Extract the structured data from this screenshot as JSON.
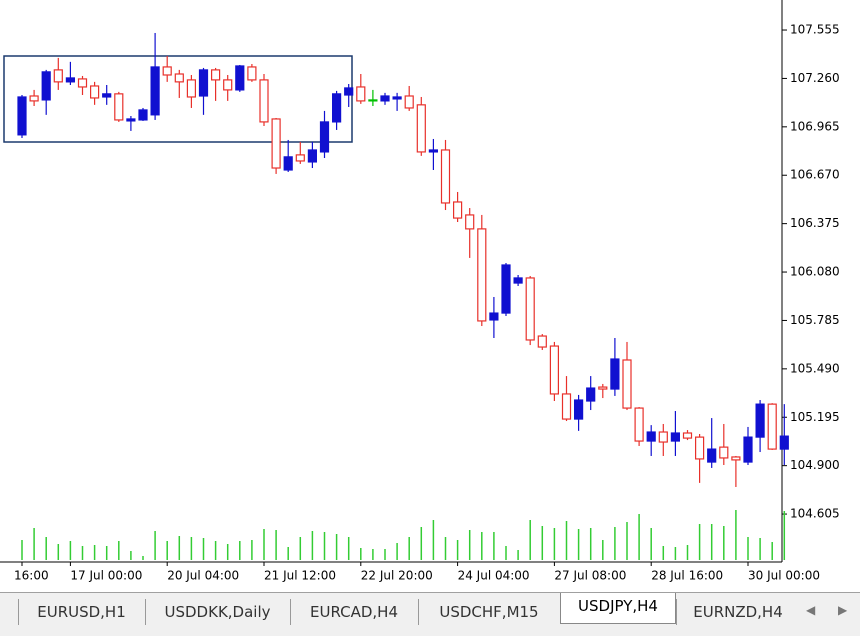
{
  "chart_data": {
    "type": "candlestick",
    "categories": [
      "16:00",
      null,
      null,
      null,
      "17 Jul 00:00",
      null,
      null,
      null,
      null,
      null,
      null,
      null,
      "20 Jul 04:00",
      null,
      null,
      null,
      null,
      null,
      null,
      null,
      "21 Jul 12:00",
      null,
      null,
      null,
      null,
      null,
      null,
      null,
      "22 Jul 20:00",
      null,
      null,
      null,
      null,
      null,
      null,
      null,
      "24 Jul 04:00",
      null,
      null,
      null,
      null,
      null,
      null,
      null,
      "27 Jul 08:00",
      null,
      null,
      null,
      null,
      null,
      null,
      null,
      "28 Jul 16:00",
      null,
      null,
      null,
      null,
      null,
      null,
      null,
      "30 Jul 00:00",
      null,
      null,
      null
    ],
    "open": [
      106.916,
      107.153,
      107.129,
      107.312,
      107.239,
      107.257,
      107.214,
      107.147,
      107.166,
      107.001,
      107.007,
      107.038,
      107.33,
      107.287,
      107.251,
      107.153,
      107.312,
      107.251,
      107.19,
      107.33,
      107.251,
      107.013,
      106.702,
      106.794,
      106.751,
      106.812,
      106.995,
      107.159,
      107.208,
      107.129,
      107.123,
      107.135,
      107.153,
      107.099,
      106.812,
      106.824,
      106.507,
      106.428,
      106.343,
      105.788,
      105.83,
      106.013,
      106.044,
      105.69,
      105.629,
      105.337,
      105.184,
      105.294,
      105.379,
      105.367,
      105.544,
      105.251,
      105.05,
      105.105,
      105.05,
      105.099,
      105.074,
      104.922,
      105.013,
      104.953,
      104.922,
      105.074,
      105.275,
      105.001
    ],
    "high": [
      107.159,
      107.19,
      107.312,
      107.385,
      107.361,
      107.275,
      107.239,
      107.22,
      107.178,
      107.031,
      107.08,
      107.537,
      107.397,
      107.312,
      107.281,
      107.324,
      107.324,
      107.281,
      107.342,
      107.348,
      107.287,
      107.019,
      106.885,
      106.873,
      106.873,
      107.062,
      107.184,
      107.226,
      107.287,
      107.19,
      107.172,
      107.172,
      107.214,
      107.147,
      106.891,
      106.885,
      106.568,
      106.47,
      106.428,
      105.928,
      106.135,
      106.062,
      106.056,
      105.702,
      105.654,
      105.446,
      105.331,
      105.446,
      105.398,
      105.678,
      105.654,
      105.257,
      105.147,
      105.154,
      105.233,
      105.117,
      105.093,
      105.19,
      105.154,
      104.959,
      105.136,
      105.3,
      105.281,
      105.275
    ],
    "low": [
      106.897,
      107.092,
      107.038,
      107.19,
      107.22,
      107.159,
      107.099,
      107.099,
      106.995,
      106.94,
      107.001,
      107.007,
      107.239,
      107.141,
      107.08,
      107.038,
      107.123,
      107.123,
      107.178,
      107.239,
      106.97,
      106.678,
      106.69,
      106.739,
      106.714,
      106.775,
      106.946,
      107.086,
      107.105,
      107.092,
      107.099,
      107.062,
      107.062,
      106.788,
      106.702,
      106.458,
      106.385,
      106.166,
      105.751,
      105.678,
      105.812,
      105.995,
      105.635,
      105.605,
      105.294,
      105.172,
      105.112,
      105.239,
      105.312,
      105.325,
      105.239,
      105.02,
      104.959,
      104.959,
      104.959,
      105.056,
      104.795,
      104.886,
      104.904,
      104.77,
      104.904,
      104.983,
      104.996,
      104.904
    ],
    "close": [
      107.147,
      107.123,
      107.3,
      107.239,
      107.263,
      107.208,
      107.141,
      107.166,
      107.007,
      107.013,
      107.068,
      107.33,
      107.281,
      107.239,
      107.147,
      107.312,
      107.251,
      107.19,
      107.336,
      107.251,
      106.995,
      106.714,
      106.782,
      106.757,
      106.824,
      106.995,
      107.166,
      107.202,
      107.123,
      107.129,
      107.153,
      107.147,
      107.08,
      106.812,
      106.824,
      106.501,
      106.409,
      106.343,
      105.782,
      105.83,
      106.123,
      106.044,
      105.666,
      105.623,
      105.337,
      105.184,
      105.3,
      105.373,
      105.367,
      105.55,
      105.251,
      105.05,
      105.105,
      105.044,
      105.099,
      105.068,
      104.941,
      105.001,
      104.947,
      104.935,
      105.074,
      105.275,
      105.001,
      105.08
    ],
    "volume": [
      20,
      32,
      23,
      16,
      19,
      14,
      15,
      14,
      19,
      9,
      4,
      29,
      19,
      24,
      23,
      22,
      19,
      16,
      19,
      20,
      31,
      30,
      13,
      23,
      29,
      28,
      26,
      23,
      12,
      11,
      11,
      17,
      23,
      33,
      40,
      23,
      20,
      30,
      28,
      28,
      14,
      10,
      40,
      34,
      32,
      39,
      31,
      32,
      20,
      33,
      38,
      46,
      32,
      14,
      13,
      15,
      36,
      36,
      34,
      50,
      23,
      22,
      18,
      49
    ],
    "volume_lim": [
      0,
      60
    ],
    "ylim": [
      104.325,
      107.738
    ],
    "yticks": [
      107.555,
      {
        "value": 107.26,
        "label": "107.260"
      },
      106.965,
      {
        "value": 106.67,
        "label": "106.670"
      },
      106.375,
      {
        "value": 106.08,
        "label": "106.080"
      },
      105.785,
      {
        "value": 105.49,
        "label": "105.490"
      },
      105.195,
      {
        "value": 104.9,
        "label": "104.900"
      },
      104.605
    ],
    "bull_color": "#1010d0",
    "bear_color": "#e8302a",
    "doji_color": "#00c000",
    "volume_color": "#33cc33"
  },
  "tabs": [
    "EURUSD,H1",
    "USDDKK,Daily",
    "EURCAD,H4",
    "USDCHF,M15",
    "USDJPY,H4",
    "EURNZD,H4"
  ],
  "active_tab": 4
}
